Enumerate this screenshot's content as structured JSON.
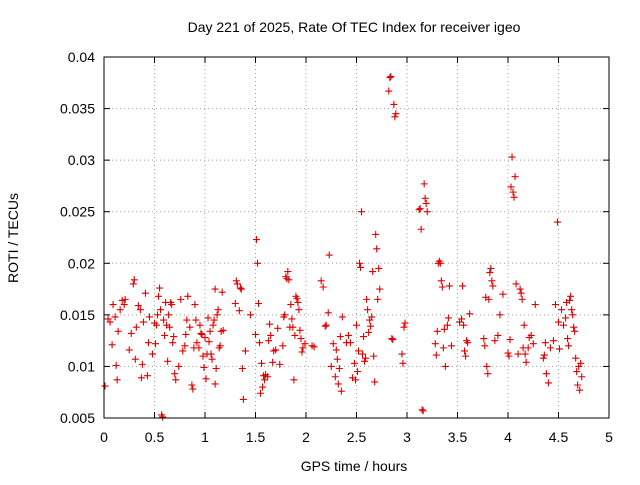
{
  "chart_data": {
    "type": "scatter",
    "title": "Day 221 of 2025, Rate Of TEC Index for receiver igeo",
    "xlabel": "GPS time / hours",
    "ylabel": "ROTI / TECUs",
    "xlim": [
      0,
      5
    ],
    "ylim": [
      0.005,
      0.04
    ],
    "xticks": [
      0,
      0.5,
      1,
      1.5,
      2,
      2.5,
      3,
      3.5,
      4,
      4.5,
      5
    ],
    "xtick_labels": [
      "0",
      "0.5",
      "1",
      "1.5",
      "2",
      "2.5",
      "3",
      "3.5",
      "4",
      "4.5",
      "5"
    ],
    "yticks": [
      0.005,
      0.01,
      0.015,
      0.02,
      0.025,
      0.03,
      0.035,
      0.04
    ],
    "ytick_labels": [
      "0.005",
      "0.01",
      "0.015",
      "0.02",
      "0.025",
      "0.03",
      "0.035",
      "0.04"
    ],
    "grid": true,
    "marker": "+",
    "color": "#e00000",
    "series": [
      {
        "name": "ROTI",
        "points": [
          [
            0.01,
            0.0081
          ],
          [
            0.04,
            0.0146
          ],
          [
            0.06,
            0.0143
          ],
          [
            0.08,
            0.0121
          ],
          [
            0.09,
            0.016
          ],
          [
            0.11,
            0.0148
          ],
          [
            0.12,
            0.0101
          ],
          [
            0.13,
            0.0087
          ],
          [
            0.14,
            0.0134
          ],
          [
            0.16,
            0.0155
          ],
          [
            0.18,
            0.0164
          ],
          [
            0.2,
            0.016
          ],
          [
            0.21,
            0.0165
          ],
          [
            0.25,
            0.0116
          ],
          [
            0.27,
            0.0132
          ],
          [
            0.29,
            0.018
          ],
          [
            0.3,
            0.0184
          ],
          [
            0.31,
            0.0107
          ],
          [
            0.32,
            0.0138
          ],
          [
            0.34,
            0.0159
          ],
          [
            0.36,
            0.0155
          ],
          [
            0.37,
            0.0089
          ],
          [
            0.38,
            0.0102
          ],
          [
            0.39,
            0.0143
          ],
          [
            0.41,
            0.0171
          ],
          [
            0.43,
            0.0091
          ],
          [
            0.44,
            0.0123
          ],
          [
            0.45,
            0.0148
          ],
          [
            0.48,
            0.0112
          ],
          [
            0.5,
            0.0142
          ],
          [
            0.51,
            0.0122
          ],
          [
            0.52,
            0.014
          ],
          [
            0.53,
            0.015
          ],
          [
            0.54,
            0.0168
          ],
          [
            0.55,
            0.0176
          ],
          [
            0.56,
            0.0155
          ],
          [
            0.57,
            0.0053
          ],
          [
            0.58,
            0.0051
          ],
          [
            0.59,
            0.0145
          ],
          [
            0.6,
            0.013
          ],
          [
            0.61,
            0.0162
          ],
          [
            0.62,
            0.014
          ],
          [
            0.63,
            0.0105
          ],
          [
            0.64,
            0.015
          ],
          [
            0.65,
            0.0138
          ],
          [
            0.66,
            0.0162
          ],
          [
            0.67,
            0.016
          ],
          [
            0.68,
            0.0123
          ],
          [
            0.69,
            0.0129
          ],
          [
            0.7,
            0.0093
          ],
          [
            0.71,
            0.0087
          ],
          [
            0.74,
            0.01
          ],
          [
            0.76,
            0.0165
          ],
          [
            0.78,
            0.0115
          ],
          [
            0.8,
            0.012
          ],
          [
            0.81,
            0.0131
          ],
          [
            0.82,
            0.0145
          ],
          [
            0.83,
            0.0168
          ],
          [
            0.85,
            0.0138
          ],
          [
            0.87,
            0.0082
          ],
          [
            0.88,
            0.0078
          ],
          [
            0.89,
            0.0118
          ],
          [
            0.9,
            0.016
          ],
          [
            0.91,
            0.0145
          ],
          [
            0.92,
            0.0123
          ],
          [
            0.94,
            0.0118
          ],
          [
            0.95,
            0.014
          ],
          [
            0.96,
            0.0132
          ],
          [
            0.97,
            0.0131
          ],
          [
            0.98,
            0.011
          ],
          [
            0.99,
            0.0099
          ],
          [
            1.0,
            0.0128
          ],
          [
            1.01,
            0.0088
          ],
          [
            1.02,
            0.0112
          ],
          [
            1.03,
            0.0147
          ],
          [
            1.04,
            0.0124
          ],
          [
            1.05,
            0.0134
          ],
          [
            1.06,
            0.0112
          ],
          [
            1.07,
            0.0107
          ],
          [
            1.08,
            0.014
          ],
          [
            1.09,
            0.0145
          ],
          [
            1.1,
            0.0175
          ],
          [
            1.1,
            0.0083
          ],
          [
            1.11,
            0.0098
          ],
          [
            1.12,
            0.015
          ],
          [
            1.13,
            0.0155
          ],
          [
            1.14,
            0.0118
          ],
          [
            1.15,
            0.012
          ],
          [
            1.16,
            0.0134
          ],
          [
            1.17,
            0.0172
          ],
          [
            1.18,
            0.0135
          ],
          [
            1.3,
            0.0161
          ],
          [
            1.31,
            0.0183
          ],
          [
            1.32,
            0.018
          ],
          [
            1.34,
            0.0154
          ],
          [
            1.35,
            0.0176
          ],
          [
            1.36,
            0.0175
          ],
          [
            1.37,
            0.0098
          ],
          [
            1.38,
            0.0068
          ],
          [
            1.4,
            0.0115
          ],
          [
            1.45,
            0.015
          ],
          [
            1.5,
            0.0131
          ],
          [
            1.51,
            0.0223
          ],
          [
            1.52,
            0.02
          ],
          [
            1.53,
            0.0161
          ],
          [
            1.54,
            0.0123
          ],
          [
            1.55,
            0.0074
          ],
          [
            1.56,
            0.0103
          ],
          [
            1.57,
            0.008
          ],
          [
            1.58,
            0.0091
          ],
          [
            1.59,
            0.0087
          ],
          [
            1.6,
            0.0092
          ],
          [
            1.62,
            0.009
          ],
          [
            1.63,
            0.0125
          ],
          [
            1.64,
            0.0141
          ],
          [
            1.65,
            0.013
          ],
          [
            1.67,
            0.0104
          ],
          [
            1.68,
            0.0115
          ],
          [
            1.7,
            0.0116
          ],
          [
            1.72,
            0.0137
          ],
          [
            1.74,
            0.0102
          ],
          [
            1.77,
            0.012
          ],
          [
            1.78,
            0.0148
          ],
          [
            1.79,
            0.015
          ],
          [
            1.8,
            0.0187
          ],
          [
            1.81,
            0.0185
          ],
          [
            1.82,
            0.0192
          ],
          [
            1.83,
            0.0184
          ],
          [
            1.84,
            0.0138
          ],
          [
            1.85,
            0.016
          ],
          [
            1.86,
            0.0146
          ],
          [
            1.87,
            0.0138
          ],
          [
            1.88,
            0.0087
          ],
          [
            1.89,
            0.013
          ],
          [
            1.9,
            0.0168
          ],
          [
            1.91,
            0.0166
          ],
          [
            1.92,
            0.0162
          ],
          [
            1.93,
            0.0155
          ],
          [
            1.94,
            0.0135
          ],
          [
            1.95,
            0.0127
          ],
          [
            1.96,
            0.0114
          ],
          [
            1.97,
            0.0118
          ],
          [
            1.99,
            0.0122
          ],
          [
            2.06,
            0.012
          ],
          [
            2.08,
            0.0119
          ],
          [
            2.15,
            0.0183
          ],
          [
            2.17,
            0.0177
          ],
          [
            2.19,
            0.0139
          ],
          [
            2.2,
            0.014
          ],
          [
            2.22,
            0.0152
          ],
          [
            2.23,
            0.0208
          ],
          [
            2.25,
            0.01
          ],
          [
            2.27,
            0.0122
          ],
          [
            2.29,
            0.009
          ],
          [
            2.3,
            0.0116
          ],
          [
            2.31,
            0.0107
          ],
          [
            2.32,
            0.0083
          ],
          [
            2.33,
            0.0098
          ],
          [
            2.34,
            0.0129
          ],
          [
            2.35,
            0.0076
          ],
          [
            2.36,
            0.0148
          ],
          [
            2.4,
            0.0123
          ],
          [
            2.42,
            0.013
          ],
          [
            2.44,
            0.0123
          ],
          [
            2.46,
            0.0089
          ],
          [
            2.48,
            0.0103
          ],
          [
            2.49,
            0.0087
          ],
          [
            2.5,
            0.014
          ],
          [
            2.51,
            0.0095
          ],
          [
            2.52,
            0.0115
          ],
          [
            2.53,
            0.02
          ],
          [
            2.54,
            0.0196
          ],
          [
            2.55,
            0.025
          ],
          [
            2.56,
            0.0112
          ],
          [
            2.57,
            0.0129
          ],
          [
            2.58,
            0.0105
          ],
          [
            2.59,
            0.0108
          ],
          [
            2.6,
            0.0165
          ],
          [
            2.61,
            0.0155
          ],
          [
            2.62,
            0.0133
          ],
          [
            2.63,
            0.0145
          ],
          [
            2.64,
            0.0139
          ],
          [
            2.65,
            0.0148
          ],
          [
            2.66,
            0.0192
          ],
          [
            2.67,
            0.011
          ],
          [
            2.68,
            0.0085
          ],
          [
            2.69,
            0.0228
          ],
          [
            2.7,
            0.0214
          ],
          [
            2.71,
            0.0165
          ],
          [
            2.72,
            0.0195
          ],
          [
            2.73,
            0.0175
          ],
          [
            2.82,
            0.0367
          ],
          [
            2.83,
            0.038
          ],
          [
            2.84,
            0.0381
          ],
          [
            2.85,
            0.0127
          ],
          [
            2.86,
            0.0126
          ],
          [
            2.87,
            0.0354
          ],
          [
            2.88,
            0.0342
          ],
          [
            2.89,
            0.0345
          ],
          [
            2.95,
            0.0112
          ],
          [
            2.96,
            0.0103
          ],
          [
            2.97,
            0.0138
          ],
          [
            2.98,
            0.0142
          ],
          [
            3.12,
            0.0252
          ],
          [
            3.13,
            0.0253
          ],
          [
            3.14,
            0.0233
          ],
          [
            3.15,
            0.0058
          ],
          [
            3.16,
            0.0057
          ],
          [
            3.17,
            0.0277
          ],
          [
            3.18,
            0.0263
          ],
          [
            3.19,
            0.0258
          ],
          [
            3.2,
            0.025
          ],
          [
            3.28,
            0.0122
          ],
          [
            3.29,
            0.0111
          ],
          [
            3.3,
            0.0134
          ],
          [
            3.31,
            0.02
          ],
          [
            3.32,
            0.0202
          ],
          [
            3.33,
            0.02
          ],
          [
            3.34,
            0.0183
          ],
          [
            3.35,
            0.0177
          ],
          [
            3.36,
            0.0118
          ],
          [
            3.37,
            0.0136
          ],
          [
            3.38,
            0.01
          ],
          [
            3.4,
            0.014
          ],
          [
            3.41,
            0.0147
          ],
          [
            3.42,
            0.0178
          ],
          [
            3.44,
            0.012
          ],
          [
            3.52,
            0.0143
          ],
          [
            3.54,
            0.0146
          ],
          [
            3.55,
            0.0178
          ],
          [
            3.56,
            0.014
          ],
          [
            3.57,
            0.0115
          ],
          [
            3.58,
            0.011
          ],
          [
            3.59,
            0.0125
          ],
          [
            3.6,
            0.0123
          ],
          [
            3.62,
            0.0151
          ],
          [
            3.76,
            0.0127
          ],
          [
            3.77,
            0.012
          ],
          [
            3.78,
            0.0167
          ],
          [
            3.79,
            0.01
          ],
          [
            3.8,
            0.0093
          ],
          [
            3.81,
            0.0165
          ],
          [
            3.82,
            0.0191
          ],
          [
            3.83,
            0.0195
          ],
          [
            3.84,
            0.0183
          ],
          [
            3.85,
            0.0178
          ],
          [
            3.87,
            0.0125
          ],
          [
            3.9,
            0.013
          ],
          [
            3.92,
            0.015
          ],
          [
            3.95,
            0.017
          ],
          [
            4.0,
            0.0113
          ],
          [
            4.01,
            0.011
          ],
          [
            4.02,
            0.0126
          ],
          [
            4.03,
            0.0274
          ],
          [
            4.04,
            0.0303
          ],
          [
            4.05,
            0.0269
          ],
          [
            4.06,
            0.0264
          ],
          [
            4.07,
            0.0284
          ],
          [
            4.08,
            0.018
          ],
          [
            4.1,
            0.0112
          ],
          [
            4.12,
            0.0175
          ],
          [
            4.13,
            0.0171
          ],
          [
            4.14,
            0.0165
          ],
          [
            4.15,
            0.0118
          ],
          [
            4.16,
            0.014
          ],
          [
            4.17,
            0.0112
          ],
          [
            4.18,
            0.0104
          ],
          [
            4.2,
            0.0118
          ],
          [
            4.21,
            0.0128
          ],
          [
            4.23,
            0.013
          ],
          [
            4.25,
            0.0122
          ],
          [
            4.27,
            0.016
          ],
          [
            4.35,
            0.0108
          ],
          [
            4.36,
            0.0111
          ],
          [
            4.37,
            0.0123
          ],
          [
            4.38,
            0.0093
          ],
          [
            4.4,
            0.0084
          ],
          [
            4.42,
            0.0118
          ],
          [
            4.45,
            0.0125
          ],
          [
            4.47,
            0.016
          ],
          [
            4.49,
            0.024
          ],
          [
            4.5,
            0.0143
          ],
          [
            4.51,
            0.0117
          ],
          [
            4.53,
            0.0155
          ],
          [
            4.55,
            0.014
          ],
          [
            4.57,
            0.0147
          ],
          [
            4.58,
            0.0162
          ],
          [
            4.59,
            0.0127
          ],
          [
            4.6,
            0.012
          ],
          [
            4.61,
            0.0164
          ],
          [
            4.62,
            0.0168
          ],
          [
            4.63,
            0.0155
          ],
          [
            4.64,
            0.015
          ],
          [
            4.65,
            0.0138
          ],
          [
            4.66,
            0.0134
          ],
          [
            4.67,
            0.0108
          ],
          [
            4.68,
            0.0095
          ],
          [
            4.69,
            0.0082
          ],
          [
            4.7,
            0.01
          ],
          [
            4.71,
            0.0077
          ],
          [
            4.72,
            0.0103
          ],
          [
            4.73,
            0.009
          ]
        ]
      }
    ]
  }
}
